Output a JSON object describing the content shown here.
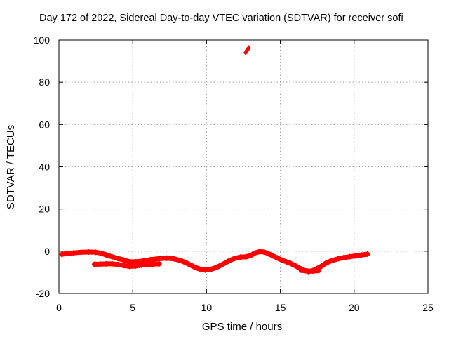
{
  "colors": {
    "series": "#ff0000",
    "grid": "#a0a0a0",
    "axis": "#000000",
    "background": "#ffffff"
  },
  "chart_data": {
    "type": "scatter",
    "title": "Day 172 of 2022, Sidereal Day-to-day VTEC variation (SDTVAR) for receiver sofi",
    "xlabel": "GPS time / hours",
    "ylabel": "SDTVAR / TECUs",
    "xlim": [
      0,
      25
    ],
    "ylim": [
      -20,
      100
    ],
    "xticks": [
      0,
      5,
      10,
      15,
      20,
      25
    ],
    "yticks": [
      -20,
      0,
      20,
      40,
      60,
      80,
      100
    ],
    "grid": true,
    "legend": "none",
    "series": [
      {
        "name": "main band",
        "x": [
          0.2,
          0.6,
          1.0,
          1.5,
          2.0,
          2.5,
          2.9,
          3.2,
          3.6,
          4.0,
          4.4,
          4.8,
          5.2,
          5.7,
          6.2,
          6.8,
          7.3,
          7.8,
          8.3,
          8.7,
          9.1,
          9.5,
          9.9,
          10.3,
          10.7,
          11.1,
          11.5,
          11.9,
          12.3,
          12.7,
          13.0,
          13.3,
          13.6,
          13.9,
          14.2,
          14.5,
          14.8,
          15.1,
          15.4,
          15.7,
          16.0,
          16.3,
          16.6,
          16.9,
          17.2,
          17.5,
          17.8,
          18.1,
          18.5,
          18.9,
          19.3,
          19.7,
          20.1,
          20.5,
          20.9
        ],
        "y": [
          -1.5,
          -1.0,
          -0.8,
          -0.5,
          -0.4,
          -0.5,
          -1.0,
          -1.8,
          -2.6,
          -3.4,
          -4.2,
          -5.0,
          -5.0,
          -4.6,
          -4.0,
          -3.5,
          -3.3,
          -3.6,
          -4.5,
          -5.8,
          -7.2,
          -8.4,
          -8.9,
          -8.6,
          -7.6,
          -6.2,
          -4.6,
          -3.4,
          -2.8,
          -2.6,
          -2.0,
          -0.8,
          -0.2,
          -0.4,
          -1.2,
          -2.2,
          -3.2,
          -4.2,
          -5.0,
          -5.8,
          -6.8,
          -8.0,
          -9.0,
          -9.6,
          -9.2,
          -8.2,
          -7.0,
          -5.6,
          -4.4,
          -3.6,
          -3.0,
          -2.6,
          -2.2,
          -1.8,
          -1.4
        ]
      },
      {
        "name": "lower arc",
        "x": [
          2.4,
          2.8,
          3.2,
          3.6,
          4.0,
          4.4,
          4.8,
          5.2,
          5.6,
          6.0,
          6.4,
          6.8
        ],
        "y": [
          -6.2,
          -6.1,
          -6.0,
          -6.0,
          -6.3,
          -6.8,
          -7.2,
          -7.0,
          -6.6,
          -6.3,
          -6.1,
          -6.0
        ]
      },
      {
        "name": "trough arc",
        "x": [
          16.4,
          16.8,
          17.2,
          17.6
        ],
        "y": [
          -9.0,
          -9.4,
          -9.4,
          -9.2
        ]
      },
      {
        "name": "outlier",
        "x": [
          12.65,
          12.75,
          12.85
        ],
        "y": [
          94.0,
          95.2,
          96.2
        ]
      }
    ]
  }
}
